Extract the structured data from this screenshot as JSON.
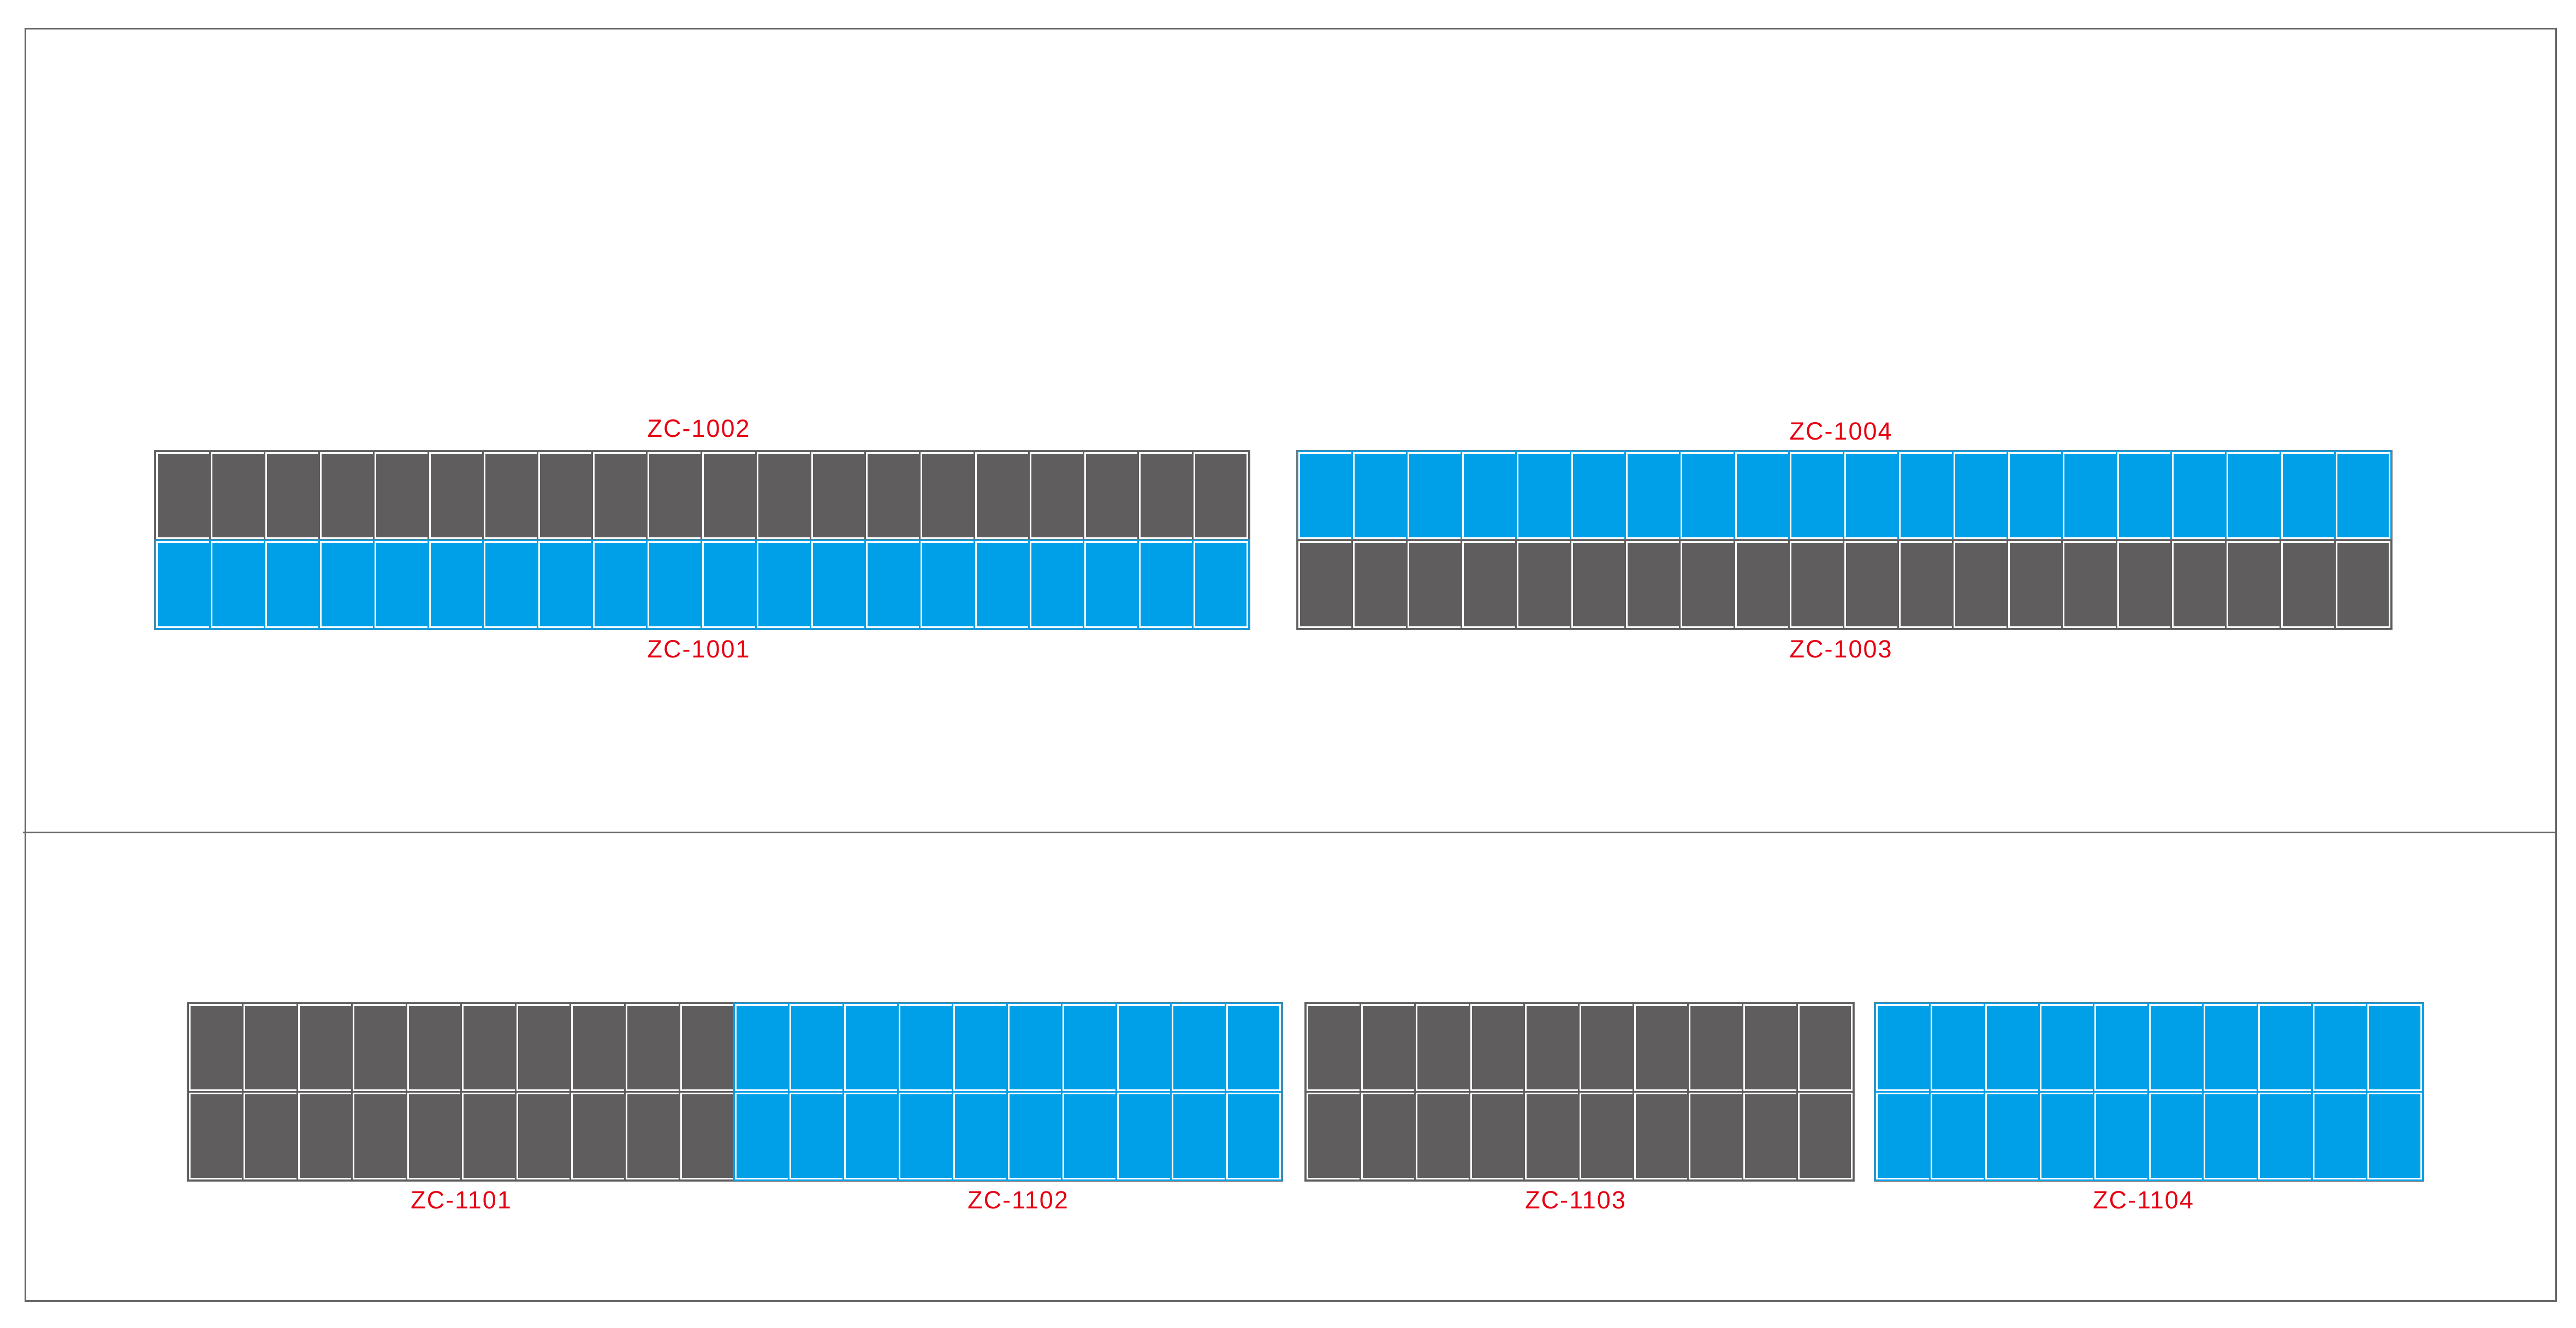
{
  "colors": {
    "gray_panel": "#5f5d5e",
    "blue_panel": "#00a0e9",
    "label": "#e60012",
    "frame": "#666666"
  },
  "top_section": {
    "labels": {
      "zc1002": "ZC-1002",
      "zc1001": "ZC-1001",
      "zc1004": "ZC-1004",
      "zc1003": "ZC-1003"
    },
    "rows": [
      {
        "id": "ZC-1002",
        "count": 20,
        "color": "gray"
      },
      {
        "id": "ZC-1001",
        "count": 20,
        "color": "blue"
      },
      {
        "id": "ZC-1004",
        "count": 20,
        "color": "blue"
      },
      {
        "id": "ZC-1003",
        "count": 20,
        "color": "gray"
      }
    ]
  },
  "bottom_section": {
    "labels": {
      "zc1101": "ZC-1101",
      "zc1102": "ZC-1102",
      "zc1103": "ZC-1103",
      "zc1104": "ZC-1104"
    },
    "groups": [
      {
        "id": "ZC-1101",
        "columns": 10,
        "rows": 2,
        "color": "gray"
      },
      {
        "id": "ZC-1102",
        "columns": 10,
        "rows": 2,
        "color": "blue"
      },
      {
        "id": "ZC-1103",
        "columns": 10,
        "rows": 2,
        "color": "gray"
      },
      {
        "id": "ZC-1104",
        "columns": 10,
        "rows": 2,
        "color": "blue"
      }
    ]
  }
}
